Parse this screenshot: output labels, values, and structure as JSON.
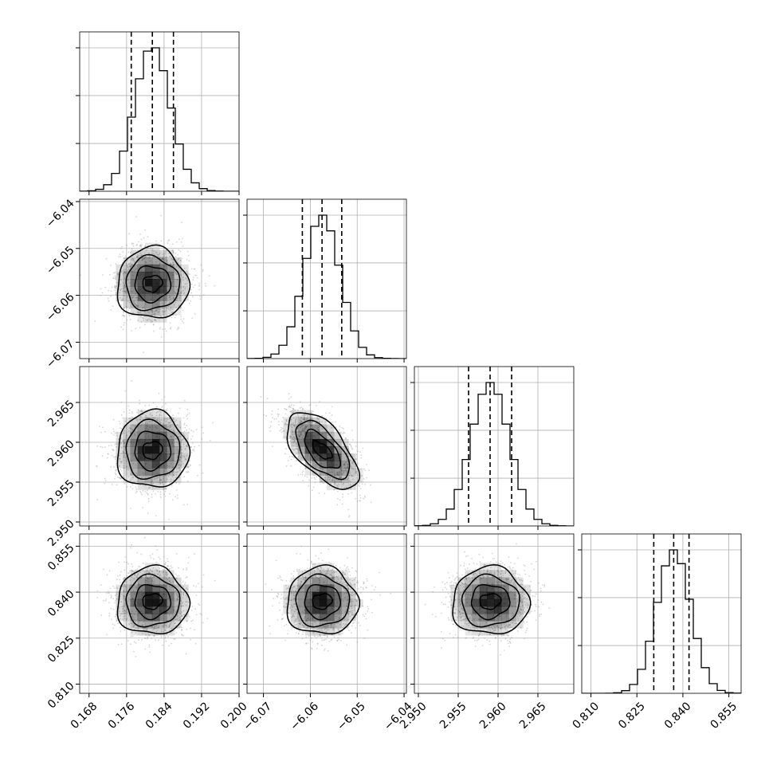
{
  "chart_data": {
    "type": "corner",
    "title": "",
    "grid": true,
    "parameters": [
      {
        "range": [
          0.166,
          0.2
        ],
        "ticks": [
          0.168,
          0.176,
          0.184,
          0.192,
          0.2
        ],
        "tick_labels": [
          "0.168",
          "0.176",
          "0.184",
          "0.192",
          "0.200"
        ],
        "mean": 0.1815,
        "sigma": 0.0038,
        "quantiles": [
          0.177,
          0.1815,
          0.186
        ]
      },
      {
        "range": [
          -6.0735,
          -6.0395
        ],
        "ticks": [
          -6.07,
          -6.06,
          -6.05,
          -6.04
        ],
        "tick_labels": [
          "−6.07",
          "−6.06",
          "−6.05",
          "−6.04"
        ],
        "mean": -6.0575,
        "sigma": 0.0038,
        "quantiles": [
          -6.0617,
          -6.0575,
          -6.0533
        ]
      },
      {
        "range": [
          2.9495,
          2.9695
        ],
        "ticks": [
          2.95,
          2.955,
          2.96,
          2.965
        ],
        "tick_labels": [
          "2.950",
          "2.955",
          "2.960",
          "2.965"
        ],
        "mean": 2.959,
        "sigma": 0.0024,
        "quantiles": [
          2.9563,
          2.959,
          2.9617
        ]
      },
      {
        "range": [
          0.807,
          0.859
        ],
        "ticks": [
          0.81,
          0.825,
          0.84,
          0.855
        ],
        "tick_labels": [
          "0.810",
          "0.825",
          "0.840",
          "0.855"
        ],
        "mean": 0.837,
        "sigma": 0.0055,
        "quantiles": [
          0.8305,
          0.837,
          0.842
        ]
      }
    ],
    "correlations": [
      [
        1,
        0,
        0,
        0
      ],
      [
        0,
        1,
        -0.6,
        0
      ],
      [
        0,
        -0.6,
        1,
        0
      ],
      [
        0,
        0,
        0,
        1
      ]
    ],
    "contour_levels_sigma": [
      0.5,
      1.0,
      1.5,
      2.0
    ],
    "colors": {
      "hist_line": "#000000",
      "grid": "#b0b0b0",
      "scatter_points": "#888888",
      "density_shade": "#000000",
      "contour": "#000000"
    }
  }
}
